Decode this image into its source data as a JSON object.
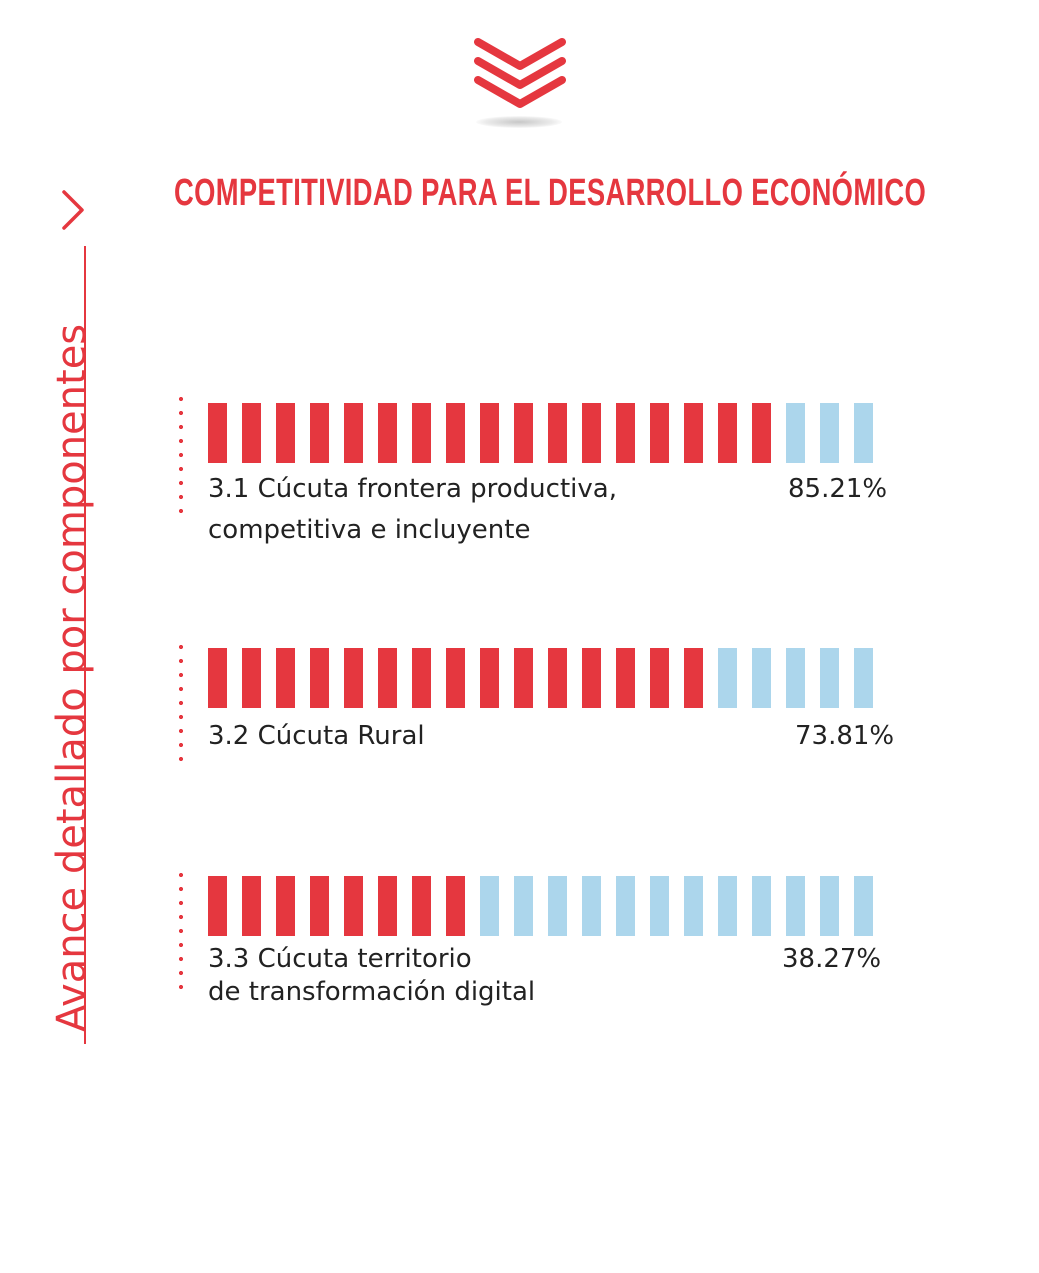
{
  "header": {
    "title": "COMPETITIVIDAD PARA EL DESARROLLO ECONÓMICO",
    "icon": "triple-chevron-down-icon"
  },
  "side": {
    "label": "Avance detallado por  componentes",
    "icon": "chevron-right-icon"
  },
  "colors": {
    "filled": "#e5373f",
    "empty": "#acd6ec",
    "accent": "#e5373f"
  },
  "chart_data": {
    "type": "bar",
    "segments_per_bar": 20,
    "categories": [
      "3.1 Cúcuta frontera productiva, competitiva e incluyente",
      "3.2 Cúcuta Rural",
      "3.3 Cúcuta territorio de transformación digital"
    ],
    "series": [
      {
        "values": [
          85.21,
          73.81,
          38.27
        ]
      }
    ],
    "value_labels": [
      "85.21%",
      "73.81%",
      "38.27%"
    ],
    "ylim": [
      0,
      100
    ]
  },
  "rows": [
    {
      "line1": "3.1 Cúcuta frontera productiva,",
      "line2": "competitiva e incluyente",
      "pct": "85.21%"
    },
    {
      "line1": "3.2 Cúcuta Rural",
      "line2": "",
      "pct": "73.81%"
    },
    {
      "line1": "3.3 Cúcuta territorio",
      "line2": "de transformación digital",
      "pct": "38.27%"
    }
  ]
}
